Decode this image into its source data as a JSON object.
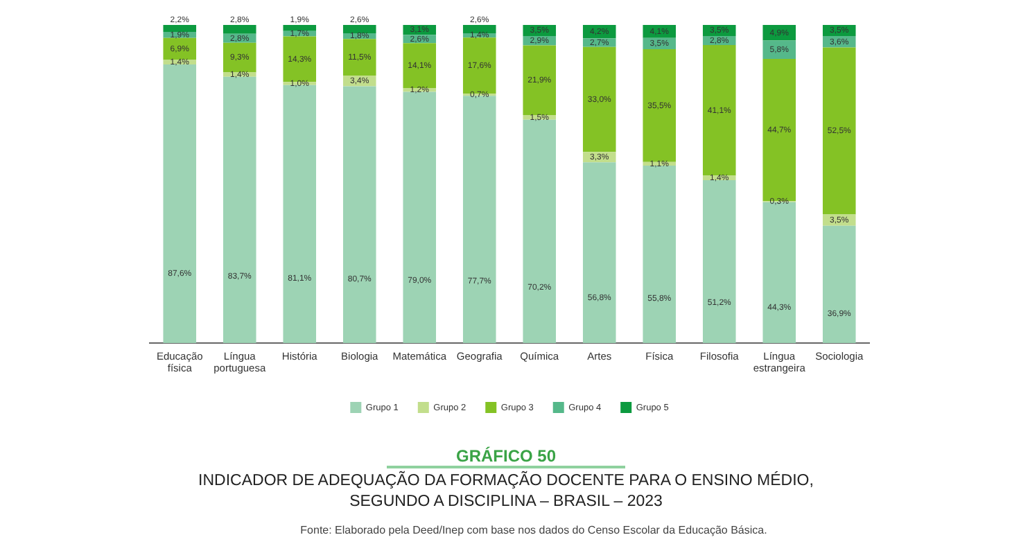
{
  "chart_data": {
    "type": "bar",
    "stacked": true,
    "title": "GRÁFICO 50",
    "subtitle": "INDICADOR DE ADEQUAÇÃO DA FORMAÇÃO DOCENTE PARA O ENSINO MÉDIO, SEGUNDO A DISCIPLINA – BRASIL – 2023",
    "annotations": [
      "Fonte: Elaborado pela Deed/Inep com base nos dados do Censo Escolar da Educação Básica."
    ],
    "categories": [
      "Educação física",
      "Língua portuguesa",
      "História",
      "Biologia",
      "Matemática",
      "Geografia",
      "Química",
      "Artes",
      "Física",
      "Filosofia",
      "Língua estrangeira",
      "Sociologia"
    ],
    "ylim": [
      0,
      100
    ],
    "tick_labels": "x",
    "grid": false,
    "legend": "bottom",
    "series": [
      {
        "name": "Grupo 1",
        "color": "#9dd3b4",
        "values": [
          87.6,
          83.7,
          81.1,
          80.7,
          79.0,
          77.7,
          70.2,
          56.8,
          55.8,
          51.2,
          44.3,
          36.9
        ],
        "value_labels": [
          "87,6%",
          "83,7%",
          "81,1%",
          "80,7%",
          "79,0%",
          "77,7%",
          "70,2%",
          "56,8%",
          "55,8%",
          "51,2%",
          "44,3%",
          "36,9%"
        ]
      },
      {
        "name": "Grupo 2",
        "color": "#c2de8c",
        "values": [
          1.4,
          1.4,
          1.0,
          3.4,
          1.2,
          0.7,
          1.5,
          3.3,
          1.1,
          1.4,
          0.3,
          3.5
        ],
        "value_labels": [
          "1,4%",
          "1,4%",
          "1,0%",
          "3,4%",
          "1,2%",
          "0,7%",
          "1,5%",
          "3,3%",
          "1,1%",
          "1,4%",
          "0,3%",
          "3,5%"
        ]
      },
      {
        "name": "Grupo 3",
        "color": "#84c225",
        "values": [
          6.9,
          9.3,
          14.3,
          11.5,
          14.1,
          17.6,
          21.9,
          33.0,
          35.5,
          41.1,
          44.7,
          52.5
        ],
        "value_labels": [
          "6,9%",
          "9,3%",
          "14,3%",
          "11,5%",
          "14,1%",
          "17,6%",
          "21,9%",
          "33,0%",
          "35,5%",
          "41,1%",
          "44,7%",
          "52,5%"
        ]
      },
      {
        "name": "Grupo 4",
        "color": "#55b88a",
        "values": [
          1.9,
          2.8,
          1.7,
          1.8,
          2.6,
          1.4,
          2.9,
          2.7,
          3.5,
          2.8,
          5.8,
          3.6
        ],
        "value_labels": [
          "1,9%",
          "2,8%",
          "1,7%",
          "1,8%",
          "2,6%",
          "1,4%",
          "2,9%",
          "2,7%",
          "3,5%",
          "2,8%",
          "5,8%",
          "3,6%"
        ]
      },
      {
        "name": "Grupo 5",
        "color": "#0c9a3f",
        "values": [
          2.2,
          2.8,
          1.9,
          2.6,
          3.1,
          2.6,
          3.5,
          4.2,
          4.1,
          3.5,
          4.9,
          3.5
        ],
        "value_labels": [
          "2,2%",
          "2,8%",
          "1,9%",
          "2,6%",
          "3,1%",
          "2,6%",
          "3,5%",
          "4,2%",
          "4,1%",
          "3,5%",
          "4,9%",
          "3,5%"
        ]
      }
    ]
  }
}
